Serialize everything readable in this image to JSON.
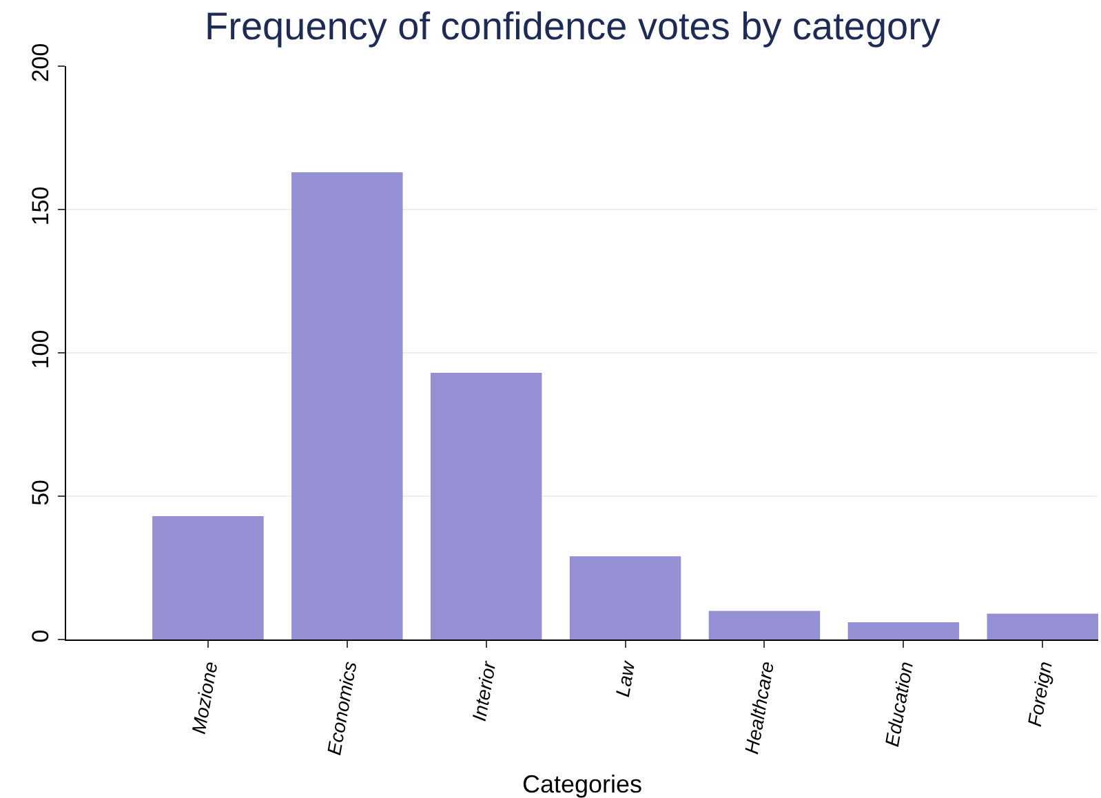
{
  "chart_data": {
    "type": "bar",
    "title": "Frequency of confidence votes by category",
    "xlabel": "Categories",
    "categories": [
      "Mozione",
      "Economics",
      "Interior",
      "Law",
      "Healthcare",
      "Education",
      "Foreign"
    ],
    "values": [
      43,
      163,
      93,
      29,
      10,
      6,
      9
    ],
    "color": "#958fd3",
    "ylim": [
      0,
      200
    ],
    "yticks": [
      0,
      50,
      100,
      150,
      200
    ],
    "grid": "y"
  }
}
